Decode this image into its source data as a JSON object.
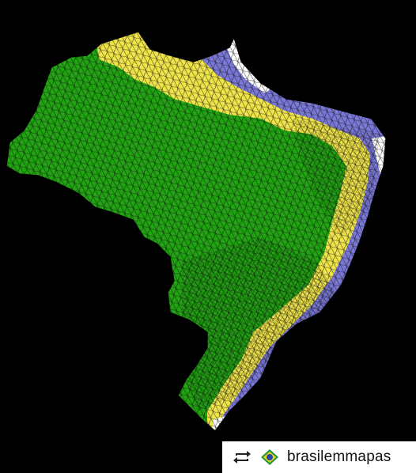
{
  "map": {
    "colors": {
      "background": "#000000",
      "zone_green": "#22a313",
      "zone_yellow": "#efe44a",
      "zone_blue": "#7a78d6",
      "zone_white": "#ffffff",
      "borders": "#0a0a0a"
    }
  },
  "credit": {
    "repost_icon": "repost-icon",
    "flag_icon": "brazil-flag-icon",
    "handle": "brasilemmapas"
  }
}
